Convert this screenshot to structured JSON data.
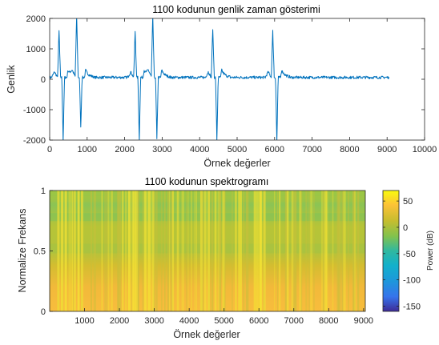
{
  "chart_data": [
    {
      "type": "line",
      "title": "1100 kodunun genlik zaman gösterimi",
      "xlabel": "Örnek değerler",
      "ylabel": "Genlik",
      "xlim": [
        0,
        10000
      ],
      "ylim": [
        -2000,
        2000
      ],
      "xticks": [
        0,
        1000,
        2000,
        3000,
        4000,
        5000,
        6000,
        7000,
        8000,
        9000,
        10000
      ],
      "yticks": [
        -2000,
        -1000,
        0,
        1000,
        2000
      ],
      "series_color": "#0072BD",
      "baseline": 60,
      "length": 9050,
      "events": [
        {
          "x": 250,
          "peak": 1600,
          "trough": -2050
        },
        {
          "x": 720,
          "peak": 2100,
          "trough": -1600
        },
        {
          "x": 2280,
          "peak": 1600,
          "trough": -2050
        },
        {
          "x": 2750,
          "peak": 2100,
          "trough": -2000
        },
        {
          "x": 4350,
          "peak": 1700,
          "trough": -2050
        },
        {
          "x": 5950,
          "peak": 1600,
          "trough": -2050
        }
      ]
    },
    {
      "type": "heatmap",
      "title": "1100 kodunun spektrogramı",
      "xlabel": "Örnek değerler",
      "ylabel": "Normalize Frekans",
      "xlim": [
        0,
        9050
      ],
      "ylim": [
        0,
        1
      ],
      "xticks": [
        1000,
        2000,
        3000,
        4000,
        5000,
        6000,
        7000,
        8000,
        9000
      ],
      "yticks": [
        0,
        0.5,
        1
      ],
      "colorbar": {
        "label": "Power (dB)",
        "range": [
          -160,
          70
        ],
        "ticks": [
          50,
          0,
          -50,
          -100,
          -150
        ]
      }
    }
  ]
}
